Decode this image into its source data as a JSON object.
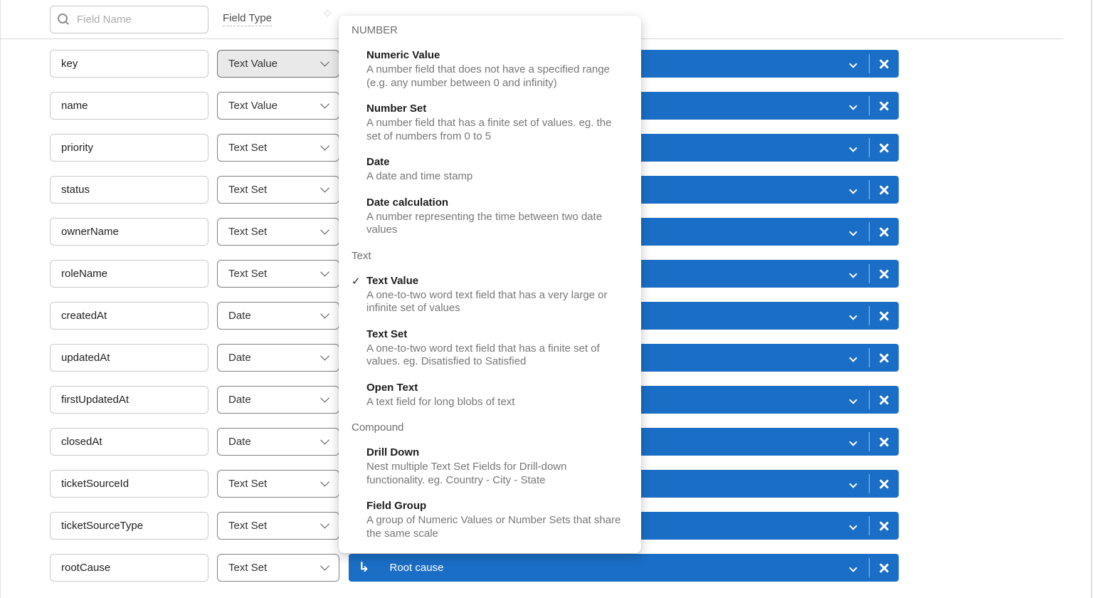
{
  "toolbar": {
    "search": {
      "placeholder": "Field Name"
    },
    "field_type_label": "Field Type"
  },
  "colors": {
    "accent_blue": "#1B6EC6",
    "divider_gray": "#d9d9d9"
  },
  "rows": [
    {
      "field_name": "key",
      "field_type": "Text Value",
      "mapped_label": ""
    },
    {
      "field_name": "name",
      "field_type": "Text Value",
      "mapped_label": ""
    },
    {
      "field_name": "priority",
      "field_type": "Text Set",
      "mapped_label": ""
    },
    {
      "field_name": "status",
      "field_type": "Text Set",
      "mapped_label": ""
    },
    {
      "field_name": "ownerName",
      "field_type": "Text Set",
      "mapped_label": ""
    },
    {
      "field_name": "roleName",
      "field_type": "Text Set",
      "mapped_label": ""
    },
    {
      "field_name": "createdAt",
      "field_type": "Date",
      "mapped_label": ""
    },
    {
      "field_name": "updatedAt",
      "field_type": "Date",
      "mapped_label": ""
    },
    {
      "field_name": "firstUpdatedAt",
      "field_type": "Date",
      "mapped_label": ""
    },
    {
      "field_name": "closedAt",
      "field_type": "Date",
      "mapped_label": ""
    },
    {
      "field_name": "ticketSourceId",
      "field_type": "Text Set",
      "mapped_label": ""
    },
    {
      "field_name": "ticketSourceType",
      "field_type": "Text Set",
      "mapped_label": ""
    },
    {
      "field_name": "rootCause",
      "field_type": "Text Set",
      "mapped_label": "Root cause"
    }
  ],
  "panel": {
    "sections": [
      {
        "header": "NUMBER",
        "items": [
          {
            "title": "Numeric Value",
            "description": "A number field that does not have a specified range (e.g. any number between 0 and infinity)",
            "selected": false
          },
          {
            "title": "Number Set",
            "description": "A number field that has a finite set of values. eg. the set of numbers from 0 to 5",
            "selected": false
          },
          {
            "title": "Date",
            "description": "A date and time stamp",
            "selected": false
          },
          {
            "title": "Date calculation",
            "description": "A number representing the time between two date values",
            "selected": false
          }
        ]
      },
      {
        "header": "Text",
        "items": [
          {
            "title": "Text Value",
            "description": "A one-to-two word text field that has a very large or infinite set of values",
            "selected": true
          },
          {
            "title": "Text Set",
            "description": "A one-to-two word text field that has a finite set of values. eg. Disatisfied to Satisfied",
            "selected": false
          },
          {
            "title": "Open Text",
            "description": "A text field for long blobs of text",
            "selected": false
          }
        ]
      },
      {
        "header": "Compound",
        "items": [
          {
            "title": "Drill Down",
            "description": "Nest multiple Text Set Fields for Drill-down functionality. eg. Country - City - State",
            "selected": false
          },
          {
            "title": "Field Group",
            "description": "A group of Numeric Values or Number Sets that share the same scale",
            "selected": false
          }
        ]
      }
    ]
  }
}
